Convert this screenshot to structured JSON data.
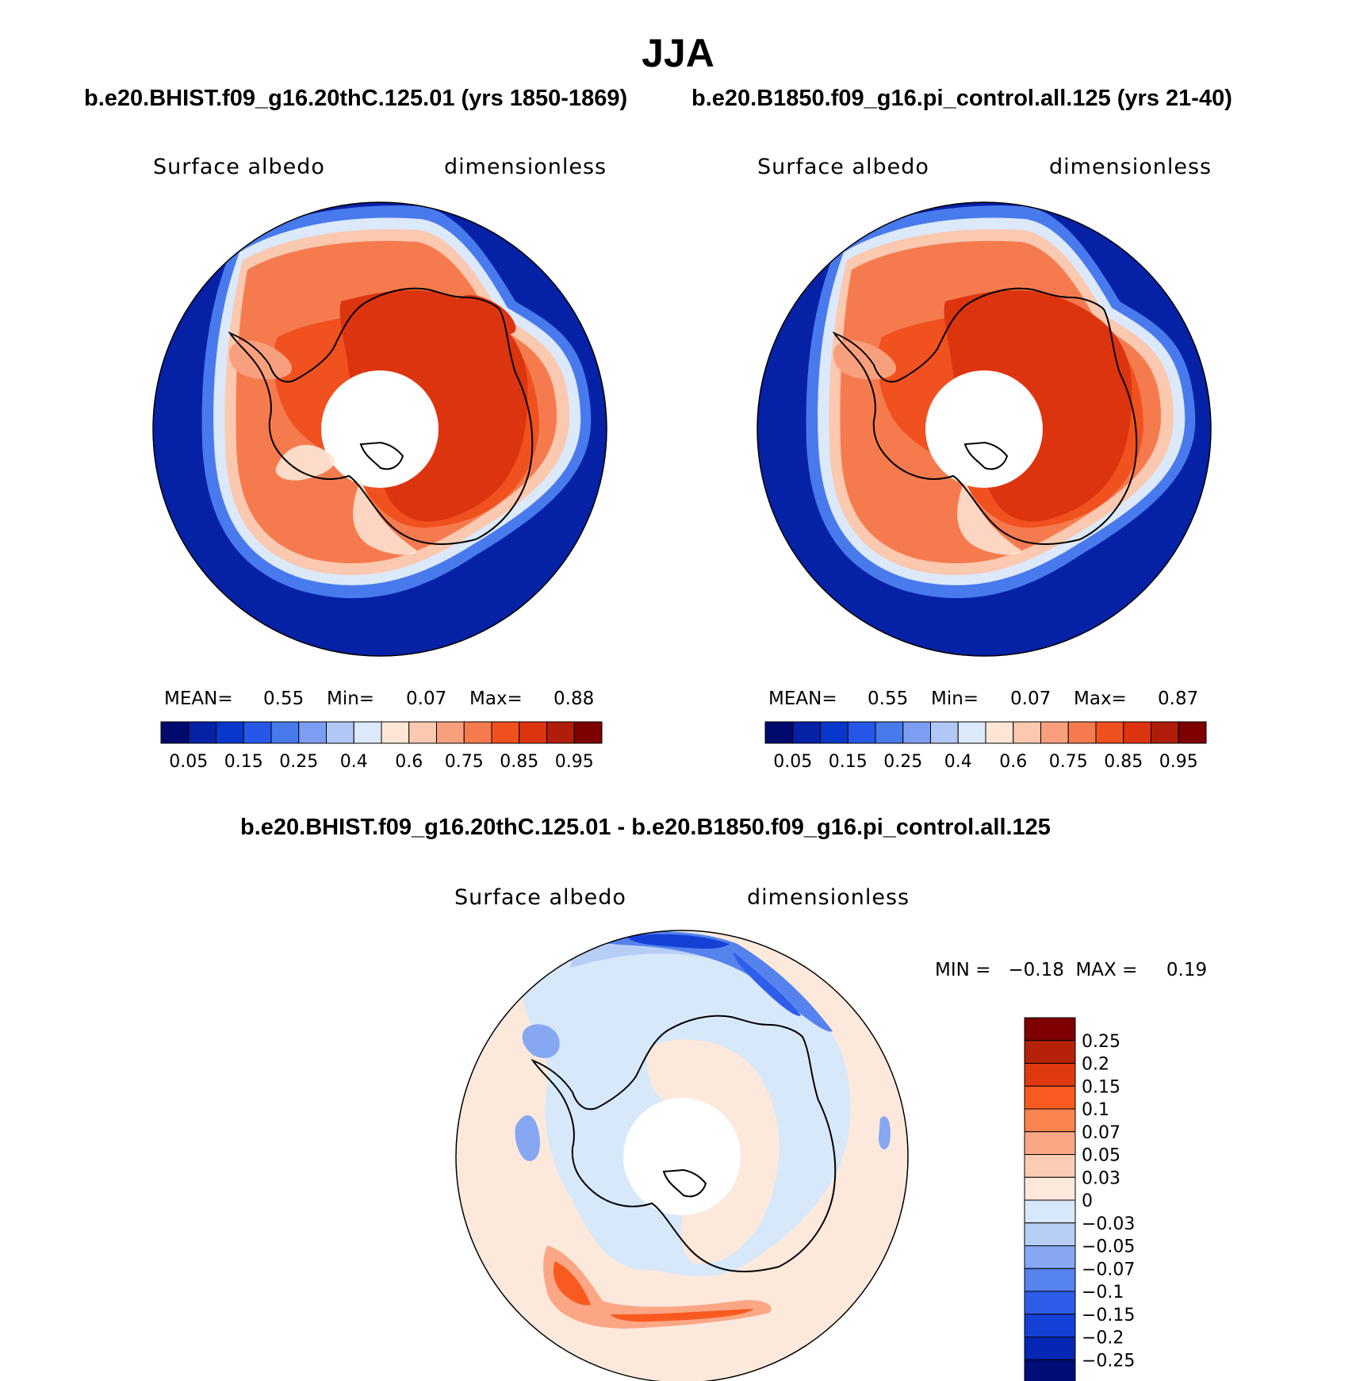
{
  "title": "JJA",
  "top_left": {
    "case_title": "b.e20.BHIST.f09_g16.20thC.125.01 (yrs 1850-1869)",
    "variable": "Surface albedo",
    "units": "dimensionless",
    "stats": {
      "mean_label": "MEAN=",
      "mean": "0.55",
      "min_label": "Min=",
      "min": "0.07",
      "max_label": "Max=",
      "max": "0.88"
    }
  },
  "top_right": {
    "case_title": "b.e20.B1850.f09_g16.pi_control.all.125 (yrs 21-40)",
    "variable": "Surface albedo",
    "units": "dimensionless",
    "stats": {
      "mean_label": "MEAN=",
      "mean": "0.55",
      "min_label": "Min=",
      "min": "0.07",
      "max_label": "Max=",
      "max": "0.87"
    }
  },
  "difference": {
    "title": "b.e20.BHIST.f09_g16.20thC.125.01 - b.e20.B1850.f09_g16.pi_control.all.125",
    "variable": "Surface albedo",
    "units": "dimensionless",
    "minmax": "MIN =   −0.18  MAX =     0.19"
  },
  "colorbar_abs": {
    "colors": [
      "#000a6e",
      "#0521a5",
      "#0837cb",
      "#2657e9",
      "#4879ed",
      "#7c9ef2",
      "#b1c8f6",
      "#dbe9fa",
      "#fde6d6",
      "#fbc8b0",
      "#f8a07e",
      "#f57b4f",
      "#f0511f",
      "#dd3410",
      "#b01d0a",
      "#7e0000"
    ],
    "labels": [
      "0.05",
      "0.15",
      "0.25",
      "0.4",
      "0.6",
      "0.75",
      "0.85",
      "0.95"
    ]
  },
  "colorbar_diff": {
    "colors": [
      "#7e0000",
      "#b52109",
      "#e0380f",
      "#f85a1f",
      "#fa8450",
      "#fba684",
      "#fccdb5",
      "#fde9dc",
      "#d7e8fb",
      "#b6cdf6",
      "#86a8f2",
      "#5582ed",
      "#2e5ee9",
      "#1540d6",
      "#0826b5",
      "#000c78"
    ],
    "labels": [
      "0.25",
      "0.2",
      "0.15",
      "0.1",
      "0.07",
      "0.05",
      "0.03",
      "0",
      "−0.03",
      "−0.05",
      "−0.07",
      "−0.1",
      "−0.15",
      "−0.2",
      "−0.25"
    ]
  }
}
